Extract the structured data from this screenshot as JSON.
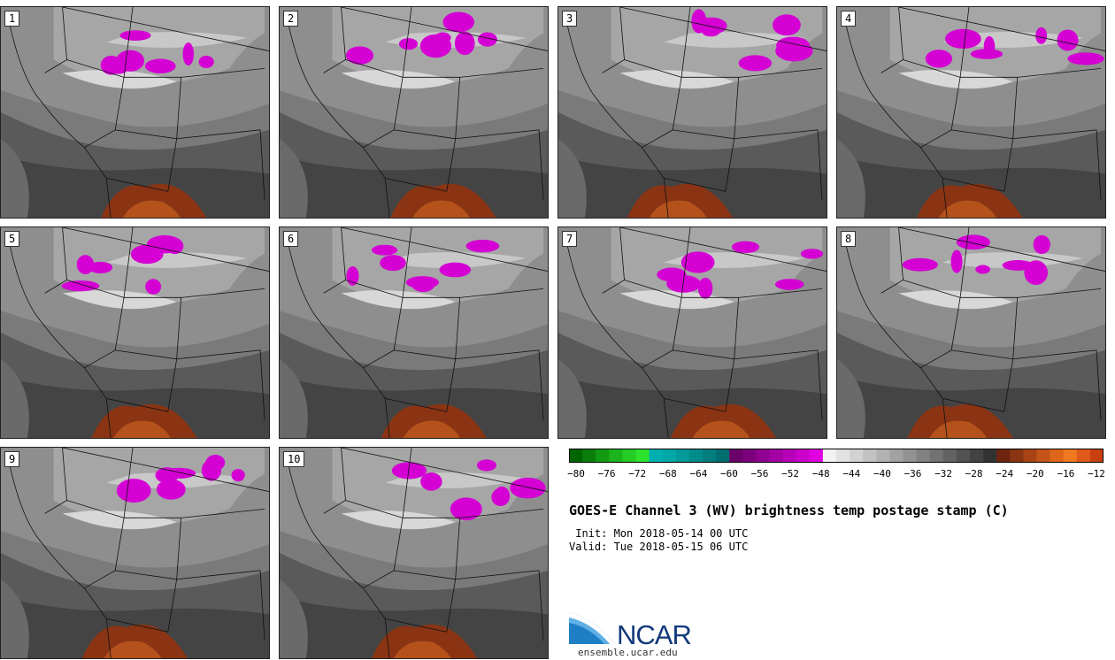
{
  "figure": {
    "title": "GOES-E Channel 3 (WV) brightness temp postage stamp (C)",
    "init": " Init: Mon 2018-05-14 00 UTC",
    "valid": "Valid: Tue 2018-05-15 06 UTC"
  },
  "panels": [
    {
      "label": "1"
    },
    {
      "label": "2"
    },
    {
      "label": "3"
    },
    {
      "label": "4"
    },
    {
      "label": "5"
    },
    {
      "label": "6"
    },
    {
      "label": "7"
    },
    {
      "label": "8"
    },
    {
      "label": "9"
    },
    {
      "label": "10"
    }
  ],
  "colorbar": {
    "ticks": [
      "−80",
      "−76",
      "−72",
      "−68",
      "−64",
      "−60",
      "−56",
      "−52",
      "−48",
      "−44",
      "−40",
      "−36",
      "−32",
      "−28",
      "−24",
      "−20",
      "−16",
      "−12"
    ],
    "colors": [
      "#006400",
      "#0b7d0b",
      "#139a13",
      "#1cb41c",
      "#24cc24",
      "#2de22d",
      "#00b0b0",
      "#00a8a8",
      "#009a9a",
      "#008c8c",
      "#007e7e",
      "#006e6e",
      "#6a006a",
      "#7c007c",
      "#900090",
      "#a400a4",
      "#b800b8",
      "#cc00cc",
      "#e000e0",
      "#f2f2f2",
      "#e2e2e2",
      "#d2d2d2",
      "#c2c2c2",
      "#b2b2b2",
      "#a2a2a2",
      "#929292",
      "#828282",
      "#727272",
      "#626262",
      "#525252",
      "#424242",
      "#323232",
      "#6e2410",
      "#8a3412",
      "#a84414",
      "#c45418",
      "#de661a",
      "#f0781e",
      "#e0581a",
      "#c84010"
    ]
  },
  "logo": {
    "name": "NCAR",
    "url": "ensemble.ucar.edu"
  }
}
